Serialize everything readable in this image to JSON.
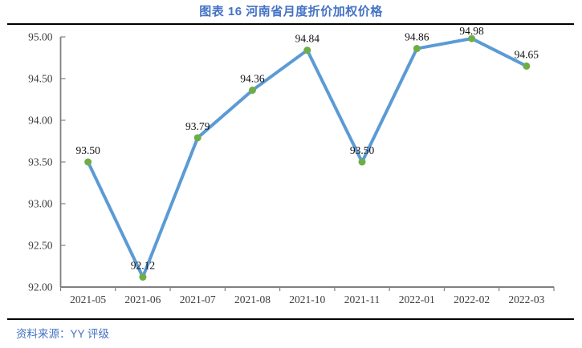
{
  "header": {
    "title": "图表 16 河南省月度折价加权价格"
  },
  "footer": {
    "source": "资料来源：YY 评级"
  },
  "chart_data": {
    "type": "line",
    "title": "图表 16 河南省月度折价加权价格",
    "categories": [
      "2021-05",
      "2021-06",
      "2021-07",
      "2021-08",
      "2021-10",
      "2021-11",
      "2022-01",
      "2022-02",
      "2022-03"
    ],
    "values": [
      93.5,
      92.12,
      93.79,
      94.36,
      94.84,
      93.5,
      94.86,
      94.98,
      94.65
    ],
    "point_labels": [
      "93.50",
      "92.12",
      "93.79",
      "94.36",
      "94.84",
      "93.50",
      "94.86",
      "94.98",
      "94.65"
    ],
    "xlabel": "",
    "ylabel": "",
    "ylim": [
      92.0,
      95.0
    ],
    "ytick_step": 0.5,
    "ytick_labels": [
      "92.00",
      "92.50",
      "93.00",
      "93.50",
      "94.00",
      "94.50",
      "95.00"
    ],
    "grid": false,
    "legend": "none",
    "colors": {
      "line": "#5B9BD5",
      "marker": "#70AD47",
      "axis": "#808080",
      "tick_label": "#3D3D3D",
      "data_label": "#111111",
      "title": "#4472C4",
      "source": "#4472C4"
    }
  }
}
